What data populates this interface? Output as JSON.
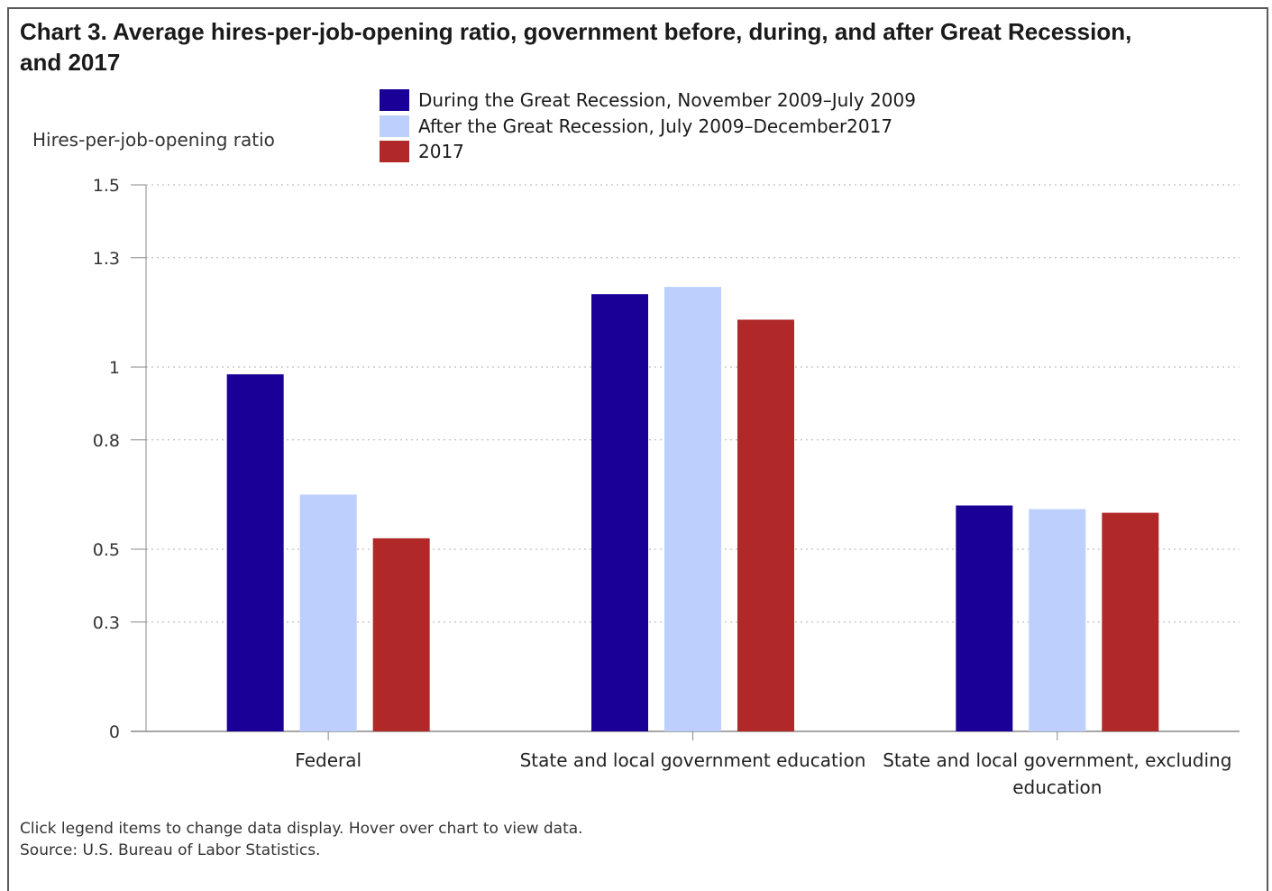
{
  "title": "Chart 3. Average hires-per-job-opening ratio, government before, during, and after Great Recession, and 2017",
  "footnotes": {
    "interaction": "Click legend items to change data display. Hover over chart to view data.",
    "source": "Source: U.S. Bureau of Labor Statistics."
  },
  "chart_data": {
    "type": "bar",
    "title": "Chart 3. Average hires-per-job-opening ratio, government before, during, and after Great Recession, and 2017",
    "xlabel": "",
    "ylabel": "Hires-per-job-opening ratio",
    "ylim": [
      0,
      1.5
    ],
    "yticks": [
      0,
      0.3,
      0.5,
      0.8,
      1,
      1.3,
      1.5
    ],
    "ytick_labels": [
      "0",
      "0.3",
      "0.5",
      "0.8",
      "1",
      "1.3",
      "1.5"
    ],
    "grid": true,
    "legend_position": "top",
    "categories": [
      [
        "Federal"
      ],
      [
        "State and local government education"
      ],
      [
        "State and local government, excluding",
        "education"
      ]
    ],
    "series": [
      {
        "name": "During the Great Recession, November 2009–July 2009",
        "color": "#1b0098",
        "values": [
          0.98,
          1.2,
          0.62
        ]
      },
      {
        "name": "After the Great Recession, July 2009–December2017",
        "color": "#bdcffc",
        "values": [
          0.65,
          1.22,
          0.61
        ]
      },
      {
        "name": "2017",
        "color": "#b12828",
        "values": [
          0.53,
          1.13,
          0.6
        ]
      }
    ]
  }
}
